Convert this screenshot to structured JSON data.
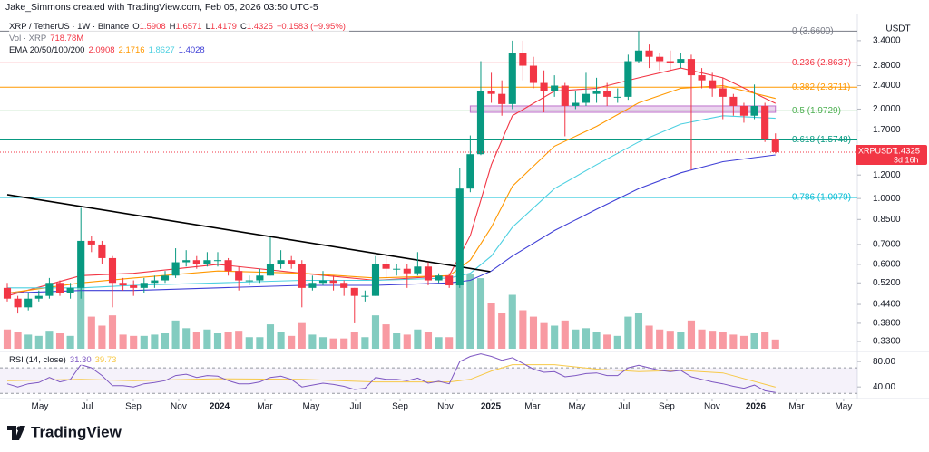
{
  "header": {
    "author": "Jake_Simmons created with TradingView.com, Feb 05, 2026 03:50 UTC-5",
    "brand": "TradingView"
  },
  "chart_data": {
    "type": "candlestick",
    "title": "XRP / TetherUS · 1W · Binance",
    "ohlc_legend": [
      [
        "O",
        "1.5908"
      ],
      [
        "H",
        "1.6571"
      ],
      [
        "L",
        "1.4179"
      ],
      [
        "C",
        "1.4325"
      ]
    ],
    "change": "−0.1583 (−9.95%)",
    "legend_color": "#f23645",
    "up_color": "#089981",
    "down_color": "#f23645",
    "y_axis_title": "USDT",
    "log_scale": true,
    "grid": false,
    "xlim": [
      -0.69,
      80.78
    ],
    "xticks": [
      {
        "value": 3.1,
        "label": "May"
      },
      {
        "value": 7.59,
        "label": "Jul"
      },
      {
        "value": 11.98,
        "label": "Sep"
      },
      {
        "value": 16.29,
        "label": "Nov"
      },
      {
        "value": 20.17,
        "label": "2024"
      },
      {
        "value": 24.48,
        "label": "Mar"
      },
      {
        "value": 28.88,
        "label": "May"
      },
      {
        "value": 33.1,
        "label": "Jul"
      },
      {
        "value": 37.33,
        "label": "Sep"
      },
      {
        "value": 41.64,
        "label": "Nov"
      },
      {
        "value": 45.95,
        "label": "2025"
      },
      {
        "value": 49.91,
        "label": "Mar"
      },
      {
        "value": 54.14,
        "label": "May"
      },
      {
        "value": 58.62,
        "label": "Jul"
      },
      {
        "value": 62.67,
        "label": "Sep"
      },
      {
        "value": 66.98,
        "label": "Nov"
      },
      {
        "value": 71.12,
        "label": "2026"
      },
      {
        "value": 75.0,
        "label": "Mar"
      },
      {
        "value": 79.48,
        "label": "May"
      }
    ],
    "ylim": [
      0.312,
      4.66
    ],
    "yticks": [
      {
        "value": 3.4,
        "label": "3.4000"
      },
      {
        "value": 2.8,
        "label": "2.8000"
      },
      {
        "value": 2.4,
        "label": "2.4000"
      },
      {
        "value": 2.0,
        "label": "2.0000"
      },
      {
        "value": 1.7,
        "label": "1.7000"
      },
      {
        "value": 1.2,
        "label": "1.2000"
      },
      {
        "value": 1.0,
        "label": "1.0000"
      },
      {
        "value": 0.85,
        "label": "0.8500"
      },
      {
        "value": 0.7,
        "label": "0.7000"
      },
      {
        "value": 0.6,
        "label": "0.6000"
      },
      {
        "value": 0.52,
        "label": "0.5200"
      },
      {
        "value": 0.44,
        "label": "0.4400"
      },
      {
        "value": 0.38,
        "label": "0.3800"
      },
      {
        "value": 0.33,
        "label": "0.3300"
      }
    ],
    "open": [
      0.5,
      0.46,
      0.43,
      0.46,
      0.47,
      0.52,
      0.48,
      0.5,
      0.72,
      0.7,
      0.63,
      0.52,
      0.51,
      0.5,
      0.52,
      0.53,
      0.55,
      0.61,
      0.62,
      0.6,
      0.62,
      0.62,
      0.57,
      0.53,
      0.53,
      0.55,
      0.6,
      0.62,
      0.6,
      0.5,
      0.52,
      0.53,
      0.52,
      0.5,
      0.47,
      0.47,
      0.6,
      0.58,
      0.58,
      0.56,
      0.59,
      0.53,
      0.55,
      0.51,
      1.08,
      1.41,
      2.3,
      2.25,
      2.08,
      3.1,
      2.8,
      2.45,
      2.3,
      2.4,
      2.05,
      2.1,
      2.25,
      2.3,
      2.2,
      2.2,
      2.9,
      3.15,
      3.0,
      2.9,
      2.85,
      2.95,
      2.6,
      2.5,
      2.35,
      2.2,
      2.05,
      1.9,
      2.05,
      1.5908
    ],
    "high": [
      0.52,
      0.47,
      0.48,
      0.49,
      0.54,
      0.53,
      0.52,
      0.93,
      0.75,
      0.72,
      0.64,
      0.54,
      0.53,
      0.54,
      0.55,
      0.57,
      0.68,
      0.67,
      0.64,
      0.66,
      0.66,
      0.63,
      0.59,
      0.55,
      0.58,
      0.74,
      0.67,
      0.64,
      0.62,
      0.55,
      0.57,
      0.55,
      0.53,
      0.5,
      0.49,
      0.64,
      0.64,
      0.6,
      0.6,
      0.66,
      0.61,
      0.56,
      0.56,
      1.27,
      1.63,
      2.9,
      2.65,
      2.5,
      3.4,
      3.4,
      3.0,
      2.7,
      2.6,
      2.45,
      2.3,
      2.65,
      2.55,
      2.45,
      2.35,
      3.05,
      3.66,
      3.3,
      3.1,
      3.15,
      3.1,
      3.05,
      2.75,
      2.65,
      2.55,
      2.25,
      2.1,
      2.42,
      2.1,
      1.6571
    ],
    "low": [
      0.45,
      0.41,
      0.42,
      0.45,
      0.46,
      0.47,
      0.46,
      0.46,
      0.66,
      0.6,
      0.43,
      0.49,
      0.47,
      0.48,
      0.5,
      0.52,
      0.54,
      0.59,
      0.58,
      0.59,
      0.59,
      0.55,
      0.49,
      0.51,
      0.52,
      0.55,
      0.58,
      0.58,
      0.43,
      0.49,
      0.51,
      0.49,
      0.47,
      0.38,
      0.45,
      0.47,
      0.54,
      0.55,
      0.5,
      0.55,
      0.51,
      0.52,
      0.5,
      0.5,
      1.05,
      1.4,
      2.1,
      1.9,
      2.0,
      2.5,
      2.35,
      1.95,
      2.2,
      1.62,
      2.0,
      2.05,
      2.1,
      2.05,
      2.1,
      2.15,
      2.85,
      2.75,
      2.7,
      2.7,
      2.75,
      1.25,
      2.35,
      2.2,
      1.85,
      1.9,
      1.8,
      1.85,
      1.55,
      1.4179
    ],
    "close": [
      0.46,
      0.43,
      0.46,
      0.47,
      0.52,
      0.48,
      0.5,
      0.72,
      0.7,
      0.63,
      0.52,
      0.51,
      0.5,
      0.52,
      0.53,
      0.55,
      0.61,
      0.62,
      0.6,
      0.62,
      0.62,
      0.57,
      0.53,
      0.53,
      0.55,
      0.6,
      0.62,
      0.6,
      0.5,
      0.52,
      0.53,
      0.52,
      0.5,
      0.47,
      0.47,
      0.6,
      0.58,
      0.58,
      0.56,
      0.59,
      0.53,
      0.55,
      0.51,
      1.08,
      1.41,
      2.3,
      2.25,
      2.08,
      3.1,
      2.8,
      2.45,
      2.3,
      2.4,
      2.05,
      2.1,
      2.25,
      2.3,
      2.2,
      2.2,
      2.9,
      3.15,
      3.0,
      2.9,
      2.85,
      2.95,
      2.6,
      2.5,
      2.35,
      2.2,
      2.05,
      1.9,
      2.05,
      1.59,
      1.4325
    ],
    "volume": {
      "label": "Vol · XRP",
      "legend_value": "718.78M",
      "values": [
        1500,
        1300,
        1100,
        1000,
        1400,
        1200,
        1000,
        6000,
        2500,
        1800,
        2600,
        1100,
        1000,
        1000,
        1100,
        1200,
        2200,
        1600,
        1300,
        1500,
        1200,
        1300,
        1400,
        900,
        900,
        1900,
        1300,
        1000,
        2000,
        1100,
        900,
        800,
        800,
        1300,
        900,
        2600,
        1900,
        1200,
        1100,
        1500,
        1300,
        900,
        900,
        5200,
        5800,
        5500,
        3600,
        2800,
        4200,
        3000,
        2500,
        2000,
        1800,
        2200,
        1500,
        1600,
        1300,
        1100,
        1000,
        2500,
        2800,
        1800,
        1500,
        1400,
        1300,
        2200,
        1500,
        1400,
        1300,
        1100,
        1000,
        1200,
        1300,
        718.78
      ]
    },
    "ema": {
      "label": "EMA 20/50/100/200",
      "x": [
        0,
        7,
        12,
        20,
        28,
        35,
        42,
        44,
        46,
        48,
        52,
        56,
        60,
        64,
        68,
        73
      ],
      "series": [
        {
          "color": "#f23645",
          "legend_value": "2.0908",
          "values": [
            0.47,
            0.55,
            0.56,
            0.6,
            0.56,
            0.53,
            0.55,
            0.75,
            1.3,
            1.9,
            2.3,
            2.35,
            2.55,
            2.75,
            2.55,
            2.0908
          ]
        },
        {
          "color": "#ff9800",
          "legend_value": "2.1716",
          "values": [
            0.48,
            0.52,
            0.54,
            0.57,
            0.56,
            0.54,
            0.55,
            0.62,
            0.8,
            1.1,
            1.5,
            1.75,
            2.1,
            2.35,
            2.4,
            2.1716
          ]
        },
        {
          "color": "#4dd0e1",
          "legend_value": "1.8627",
          "values": [
            0.5,
            0.5,
            0.51,
            0.52,
            0.53,
            0.53,
            0.54,
            0.56,
            0.64,
            0.8,
            1.08,
            1.3,
            1.55,
            1.78,
            1.9,
            1.8627
          ]
        },
        {
          "color": "#3f3fd6",
          "legend_value": "1.4028",
          "values": [
            0.48,
            0.49,
            0.49,
            0.5,
            0.51,
            0.51,
            0.52,
            0.53,
            0.57,
            0.64,
            0.78,
            0.92,
            1.08,
            1.22,
            1.33,
            1.4028
          ]
        }
      ]
    },
    "fib_levels": [
      {
        "label": "0 (3.6600)",
        "value": 3.66,
        "color": "#787b86"
      },
      {
        "label": "0.236 (2.8637)",
        "value": 2.8637,
        "color": "#f23645"
      },
      {
        "label": "0.382 (2.3711)",
        "value": 2.3711,
        "color": "#ff9800"
      },
      {
        "label": "0.5 (1.9729)",
        "value": 1.9729,
        "color": "#4caf50"
      },
      {
        "label": "0.618 (1.5748)",
        "value": 1.5748,
        "color": "#089981"
      },
      {
        "label": "0.786 (1.0079)",
        "value": 1.0079,
        "color": "#00bcd4"
      }
    ],
    "zone": {
      "x": [
        44,
        73
      ],
      "values": [
        2.05,
        1.95
      ],
      "color": "#9c27b0"
    },
    "trendline": {
      "x": [
        0,
        45.9
      ],
      "values": [
        1.03,
        0.567
      ],
      "color": "#000000"
    },
    "price_tag": {
      "symbol": "XRPUSDT",
      "value": 1.4325,
      "countdown": "3d 16h"
    },
    "rsi": {
      "label": "RSI (14, close)",
      "legend_value": "31.30",
      "ma_legend_value": "39.73",
      "color": "#7e57c2",
      "ma_color": "#f7c948",
      "ylim": [
        26,
        93
      ],
      "yticks": [
        {
          "value": 80,
          "label": "80.00"
        },
        {
          "value": 40,
          "label": "40.00"
        }
      ],
      "bands": [
        70,
        30
      ],
      "values": [
        45,
        40,
        45,
        47,
        55,
        48,
        52,
        75,
        70,
        58,
        42,
        42,
        40,
        45,
        47,
        50,
        58,
        60,
        55,
        58,
        57,
        50,
        45,
        45,
        48,
        55,
        57,
        52,
        40,
        43,
        46,
        44,
        41,
        36,
        38,
        55,
        52,
        52,
        50,
        54,
        46,
        49,
        45,
        80,
        88,
        92,
        88,
        82,
        86,
        77,
        68,
        63,
        64,
        56,
        58,
        61,
        62,
        58,
        58,
        70,
        74,
        70,
        66,
        64,
        66,
        56,
        52,
        48,
        45,
        41,
        38,
        43,
        34,
        31.3
      ],
      "ma_x": [
        0,
        7,
        12,
        20,
        28,
        35,
        42,
        44,
        46,
        48,
        52,
        56,
        60,
        64,
        68,
        73
      ],
      "ma": [
        50,
        52,
        50,
        53,
        52,
        48,
        48,
        52,
        65,
        75,
        75,
        68,
        64,
        66,
        62,
        39.73
      ]
    }
  }
}
